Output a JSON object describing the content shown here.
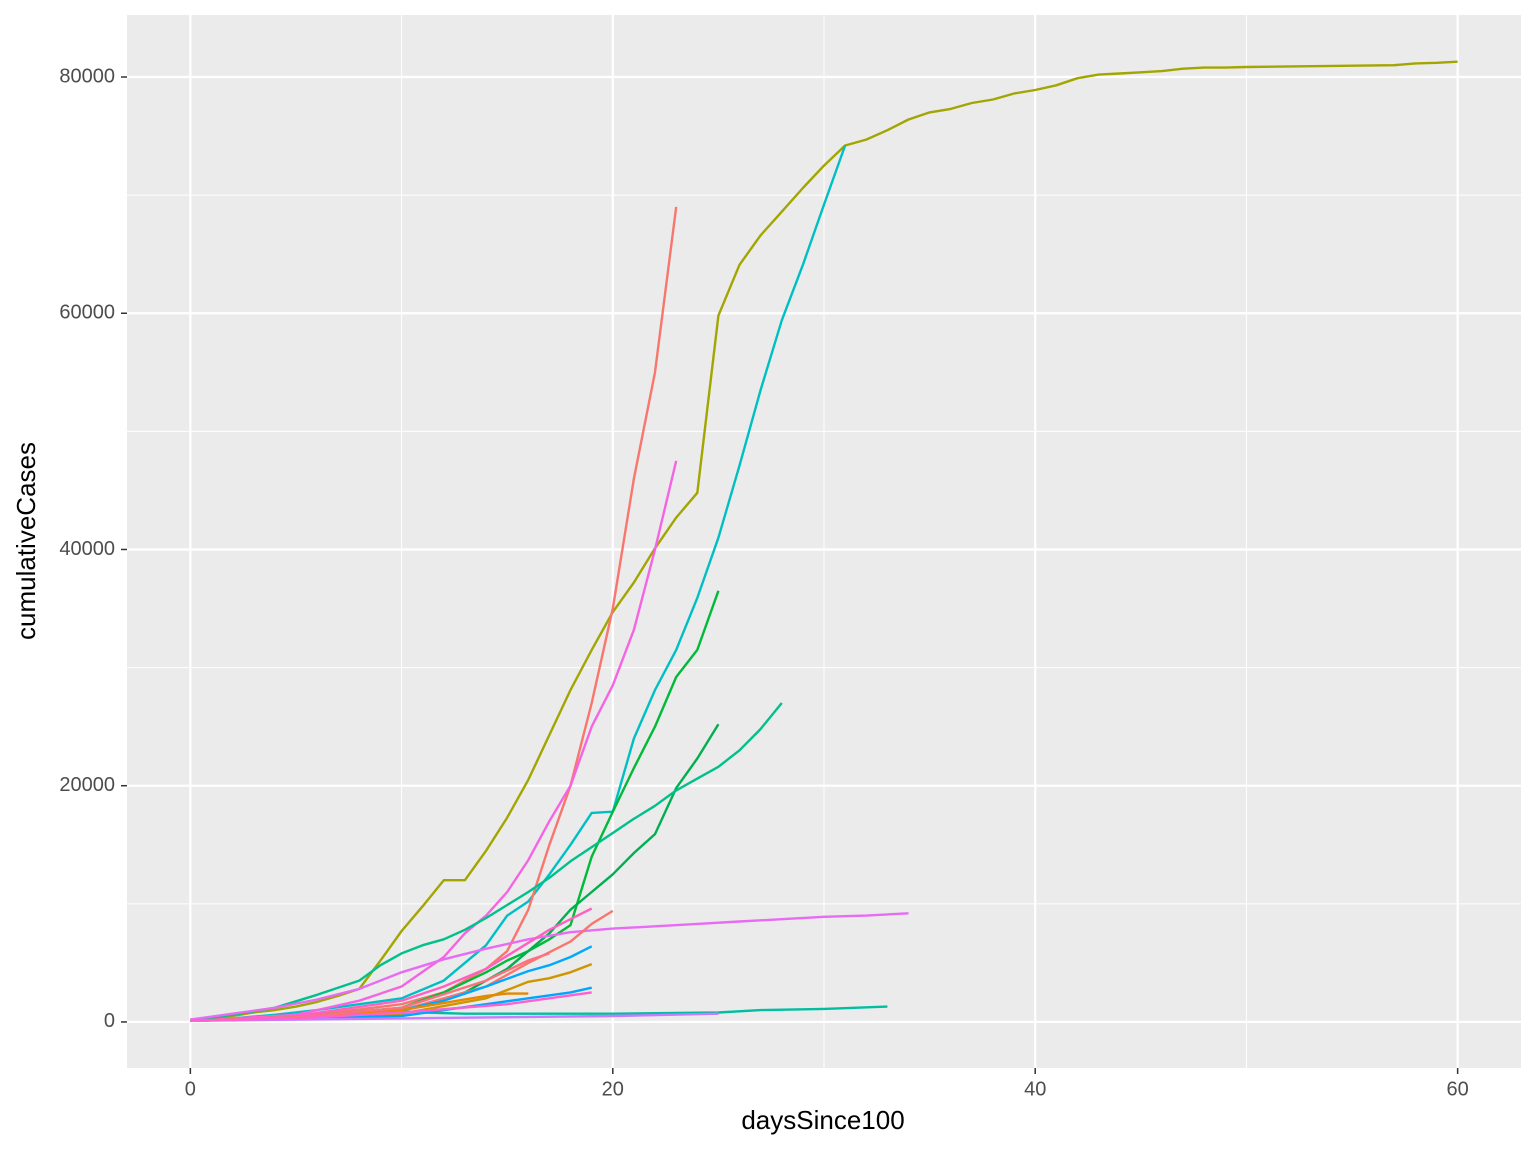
{
  "chart_data": {
    "type": "line",
    "x_label": "daysSince100",
    "y_label": "cumulativeCases",
    "xlim": [
      -3,
      63
    ],
    "ylim": [
      -3900,
      85250
    ],
    "xticks": [
      0,
      20,
      40,
      60
    ],
    "yticks": [
      0,
      20000,
      40000,
      60000,
      80000
    ],
    "xminor": [
      10,
      30,
      50
    ],
    "yminor": [
      10000,
      30000,
      50000,
      70000
    ],
    "grid": true,
    "series": [
      {
        "color": "#a3a500",
        "x": [
          0,
          1,
          2,
          3,
          4,
          5,
          6,
          7,
          8,
          9,
          10,
          11,
          12,
          13,
          14,
          15,
          16,
          17,
          18,
          19,
          20,
          21,
          22,
          23,
          24,
          25,
          26,
          27,
          28,
          29,
          30,
          31,
          32,
          33,
          34,
          35,
          36,
          37,
          38,
          39,
          40,
          41,
          42,
          43,
          44,
          45,
          46,
          47,
          48,
          49,
          50,
          57,
          58,
          59,
          60
        ],
        "values": [
          200,
          300,
          500,
          800,
          1000,
          1300,
          1700,
          2200,
          2800,
          5200,
          7700,
          9800,
          12000,
          12000,
          14500,
          17300,
          20500,
          24300,
          28100,
          31500,
          34700,
          37200,
          40100,
          42700,
          44800,
          59800,
          64100,
          66600,
          68600,
          70600,
          72500,
          74200,
          74700,
          75500,
          76400,
          77000,
          77300,
          77800,
          78100,
          78600,
          78900,
          79300,
          79900,
          80200,
          80300,
          80400,
          80500,
          80700,
          80800,
          80800,
          80850,
          81000,
          81150,
          81200,
          81300
        ]
      },
      {
        "color": "#00bfc4",
        "x": [
          0,
          2,
          4,
          6,
          8,
          10,
          12,
          14,
          15,
          16,
          17,
          18,
          19,
          20,
          21,
          22,
          23,
          24,
          25,
          26,
          27,
          28,
          29,
          30,
          31
        ],
        "values": [
          100,
          300,
          600,
          1000,
          1500,
          2000,
          3500,
          6500,
          9000,
          10200,
          12500,
          15000,
          17700,
          17800,
          24000,
          28100,
          31500,
          35900,
          41000,
          47100,
          53500,
          59400,
          64100,
          69200,
          74200
        ]
      },
      {
        "color": "#f8766d",
        "x": [
          0,
          5,
          10,
          12,
          14,
          15,
          16,
          17,
          18,
          19,
          20,
          21,
          22,
          23
        ],
        "values": [
          100,
          400,
          1500,
          2500,
          4500,
          6000,
          9500,
          15000,
          20000,
          27000,
          35000,
          46000,
          55000,
          69000
        ]
      },
      {
        "color": "#f564e3",
        "x": [
          0,
          5,
          8,
          10,
          12,
          13,
          14,
          15,
          16,
          17,
          18,
          19,
          20,
          21,
          22,
          23
        ],
        "values": [
          100,
          600,
          1800,
          3000,
          5500,
          7500,
          9000,
          11000,
          13700,
          17000,
          20000,
          25000,
          28500,
          33200,
          40000,
          47500
        ]
      },
      {
        "color": "#00ba38",
        "x": [
          0,
          5,
          10,
          12,
          14,
          15,
          16,
          17,
          18,
          19,
          20,
          21,
          22,
          23,
          24,
          25
        ],
        "values": [
          100,
          400,
          1200,
          2500,
          4200,
          5200,
          6000,
          7000,
          8200,
          14000,
          17800,
          21500,
          25000,
          29200,
          31500,
          36500
        ]
      },
      {
        "color": "#00b050",
        "x": [
          0,
          5,
          10,
          13,
          15,
          17,
          18,
          19,
          20,
          21,
          22,
          23,
          24,
          25
        ],
        "values": [
          100,
          300,
          900,
          2500,
          4500,
          7500,
          9500,
          11000,
          12500,
          14300,
          15900,
          19800,
          22300,
          25200
        ]
      },
      {
        "color": "#00c08b",
        "x": [
          0,
          2,
          4,
          6,
          8,
          9,
          10,
          11,
          12,
          13,
          14,
          15,
          16,
          17,
          18,
          19,
          20,
          21,
          22,
          23,
          24,
          25,
          26,
          27,
          28
        ],
        "values": [
          100,
          600,
          1200,
          2300,
          3500,
          4800,
          5800,
          6500,
          7000,
          7800,
          8800,
          9900,
          11000,
          12200,
          13600,
          14800,
          16000,
          17200,
          18300,
          19600,
          20600,
          21600,
          23000,
          24800,
          27000
        ]
      },
      {
        "color": "#e76bf3",
        "x": [
          0,
          2,
          4,
          6,
          8,
          10,
          12,
          14,
          16,
          18,
          20,
          22,
          24,
          26,
          28,
          30,
          32,
          34
        ],
        "values": [
          200,
          700,
          1200,
          1900,
          2800,
          4200,
          5300,
          6200,
          7000,
          7600,
          7900,
          8100,
          8300,
          8500,
          8700,
          8900,
          9000,
          9200
        ]
      },
      {
        "color": "#00bfa0",
        "x": [
          11,
          13,
          15,
          20,
          25,
          27,
          30,
          33
        ],
        "values": [
          800,
          700,
          700,
          700,
          800,
          1000,
          1100,
          1300
        ]
      },
      {
        "color": "#ff61c3",
        "x": [
          0,
          5,
          10,
          12,
          14,
          16,
          17,
          18,
          19
        ],
        "values": [
          100,
          500,
          1800,
          3000,
          4500,
          6700,
          7800,
          8700,
          9600
        ]
      },
      {
        "color": "#f8766d",
        "x": [
          0,
          5,
          10,
          14,
          16,
          18,
          19,
          20
        ],
        "values": [
          100,
          300,
          1000,
          3000,
          5000,
          6800,
          8300,
          9400
        ]
      },
      {
        "color": "#00a9ff",
        "x": [
          0,
          5,
          10,
          12,
          14,
          16,
          17,
          18,
          19
        ],
        "values": [
          100,
          400,
          1000,
          1800,
          3000,
          4300,
          4800,
          5500,
          6400
        ]
      },
      {
        "color": "#cd9600",
        "x": [
          0,
          5,
          10,
          14,
          16,
          17,
          18,
          19
        ],
        "values": [
          100,
          300,
          700,
          2000,
          3400,
          3700,
          4200,
          4900
        ]
      },
      {
        "color": "#00a5ff",
        "x": [
          0,
          5,
          10,
          14,
          16,
          18,
          19
        ],
        "values": [
          100,
          300,
          500,
          1500,
          2000,
          2500,
          2900
        ]
      },
      {
        "color": "#e58700",
        "x": [
          0,
          5,
          10,
          14,
          15,
          16
        ],
        "values": [
          100,
          400,
          1000,
          2200,
          2400,
          2400
        ]
      },
      {
        "color": "#c77cff",
        "x": [
          0,
          10,
          15,
          20,
          25
        ],
        "values": [
          100,
          300,
          400,
          500,
          700
        ]
      },
      {
        "color": "#fc717f",
        "x": [
          0,
          5,
          10,
          14,
          16,
          17
        ],
        "values": [
          100,
          400,
          1200,
          3500,
          5200,
          5800
        ]
      },
      {
        "color": "#fd61d1",
        "x": [
          0,
          5,
          10,
          15,
          17,
          19
        ],
        "values": [
          100,
          300,
          800,
          1500,
          2000,
          2500
        ]
      }
    ]
  }
}
